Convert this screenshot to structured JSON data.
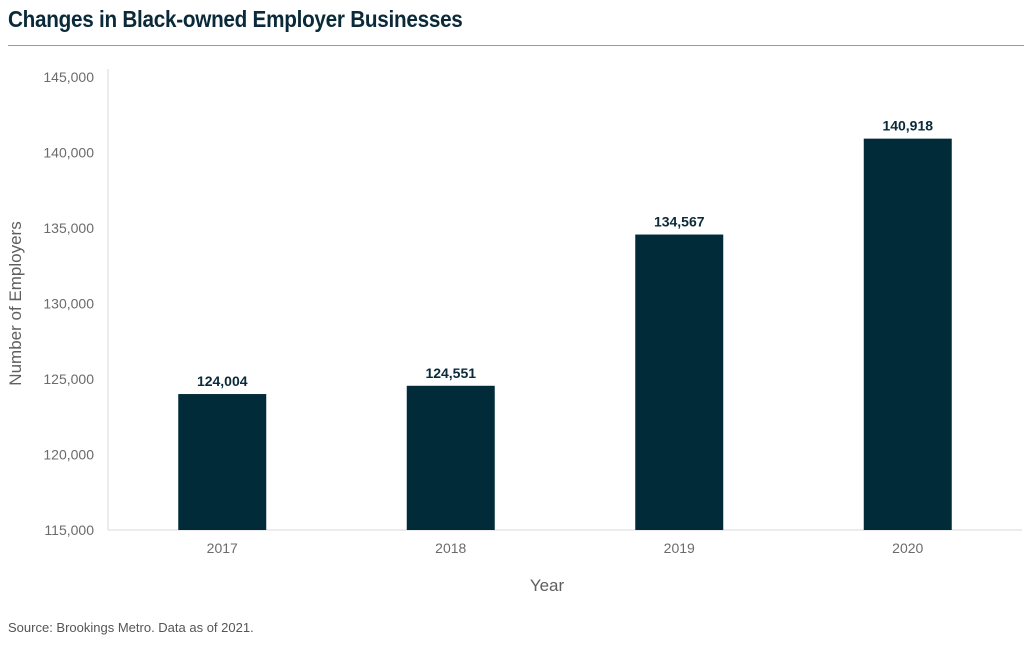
{
  "header": {
    "title": "Changes in Black-owned Employer Businesses"
  },
  "footer": {
    "source": "Source: Brookings Metro. Data as of 2021."
  },
  "colors": {
    "bar": "#022b3a",
    "axis_text": "#6b6b6b",
    "axis_title": "#5f5f5f",
    "title": "#0a2a3a",
    "data_label": "#0a2a3a",
    "axis_line": "#d9d9d9"
  },
  "chart_data": {
    "type": "bar",
    "title": "Changes in Black-owned Employer Businesses",
    "xlabel": "Year",
    "ylabel": "Number of Employers",
    "categories": [
      "2017",
      "2018",
      "2019",
      "2020"
    ],
    "values": [
      124004,
      124551,
      134567,
      140918
    ],
    "data_labels": [
      "124,004",
      "124,551",
      "134,567",
      "140,918"
    ],
    "ylim": [
      115000,
      145000
    ],
    "yticks": [
      115000,
      120000,
      125000,
      130000,
      135000,
      140000,
      145000
    ],
    "ytick_labels": [
      "115,000",
      "120,000",
      "125,000",
      "130,000",
      "135,000",
      "140,000",
      "145,000"
    ],
    "grid": false,
    "legend": "none"
  }
}
